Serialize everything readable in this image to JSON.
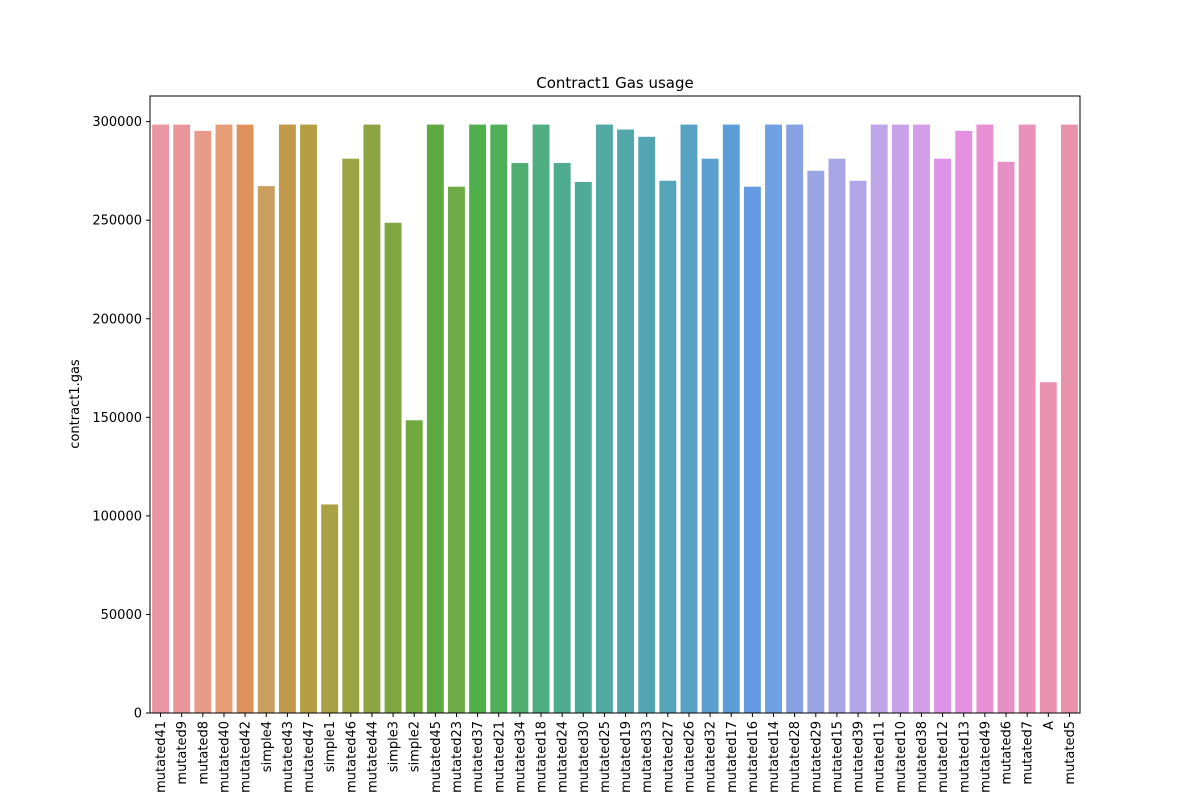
{
  "chart_data": {
    "type": "bar",
    "title": "Contract1 Gas usage",
    "xlabel": "",
    "ylabel": "contract1.gas",
    "ylim": [
      0,
      313000
    ],
    "yticks": [
      0,
      50000,
      100000,
      150000,
      200000,
      250000,
      300000
    ],
    "grid": false,
    "legend": "none",
    "categories": [
      "mutated41",
      "mutated9",
      "mutated8",
      "mutated40",
      "mutated42",
      "simple4",
      "mutated43",
      "mutated47",
      "simple1",
      "mutated46",
      "mutated44",
      "simple3",
      "simple2",
      "mutated45",
      "mutated23",
      "mutated37",
      "mutated21",
      "mutated34",
      "mutated18",
      "mutated24",
      "mutated30",
      "mutated25",
      "mutated19",
      "mutated33",
      "mutated27",
      "mutated26",
      "mutated32",
      "mutated17",
      "mutated16",
      "mutated14",
      "mutated28",
      "mutated29",
      "mutated15",
      "mutated39",
      "mutated11",
      "mutated10",
      "mutated38",
      "mutated12",
      "mutated13",
      "mutated49",
      "mutated6",
      "mutated7",
      "A",
      "mutated5"
    ],
    "values": [
      298500,
      298500,
      295300,
      298500,
      298500,
      267300,
      298500,
      298500,
      105800,
      281200,
      298500,
      248700,
      148500,
      298500,
      267000,
      298500,
      298500,
      279000,
      298500,
      279000,
      269400,
      298500,
      296000,
      292300,
      270000,
      298500,
      281200,
      298500,
      267000,
      298500,
      298500,
      275100,
      281200,
      270000,
      298500,
      298500,
      298500,
      281200,
      295300,
      298500,
      279600,
      298500,
      167800,
      298500
    ],
    "colors": [
      "#ea96a3",
      "#e9979a",
      "#e99b8a",
      "#e59e75",
      "#df935b",
      "#c99e5e",
      "#c0994b",
      "#b59e45",
      "#a9a144",
      "#9ca342",
      "#8ea442",
      "#80a640",
      "#71a840",
      "#5eaa40",
      "#6eac47",
      "#4fb04b",
      "#4fb057",
      "#4fae70",
      "#4fad82",
      "#4fab8e",
      "#50aa98",
      "#51a9a1",
      "#52a7a9",
      "#53a6b1",
      "#55a4ba",
      "#57a2c3",
      "#59a0cc",
      "#5c9dd8",
      "#6499e4",
      "#6fa0e2",
      "#86a2e3",
      "#9aa5e6",
      "#a8a6e7",
      "#b3a6e8",
      "#bea5e8",
      "#c9a1e8",
      "#d39de7",
      "#dd94e6",
      "#e590e1",
      "#e68fd3",
      "#e790c6",
      "#e991bb",
      "#ea92b0",
      "#e893ab"
    ]
  }
}
